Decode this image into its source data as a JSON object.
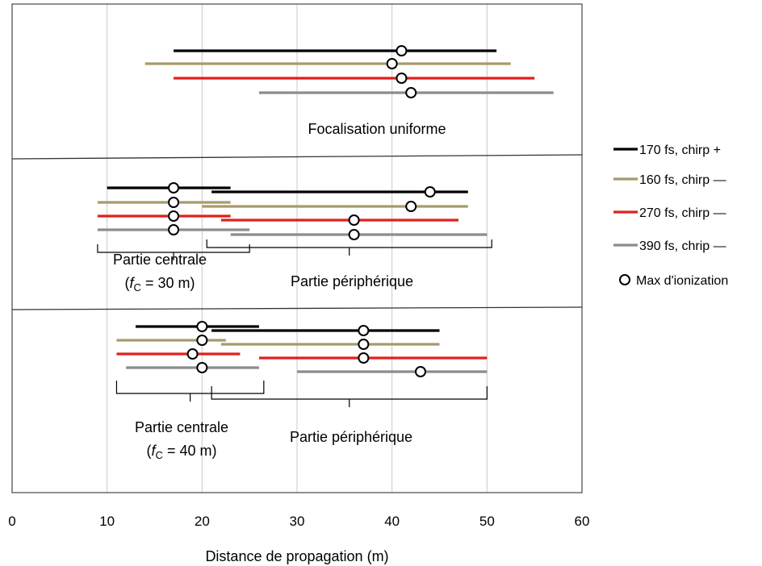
{
  "chart_data": {
    "type": "range",
    "xlabel": "Distance de propagation (m)",
    "xlim": [
      0,
      60
    ],
    "xticks": [
      0,
      10,
      20,
      30,
      40,
      50,
      60
    ],
    "grid": "vertical",
    "legend_position": "right",
    "legend": [
      {
        "label": "170 fs, chirp +",
        "color": "#000000",
        "marker": "line"
      },
      {
        "label": "160 fs, chirp —",
        "color": "#A89A6A",
        "marker": "line"
      },
      {
        "label": "270 fs, chirp —",
        "color": "#E0201B",
        "marker": "line"
      },
      {
        "label": "390 fs, chrip —",
        "color": "#8C8C8C",
        "marker": "line"
      },
      {
        "label": "Max d'ionization",
        "color": "#000000",
        "marker": "open-circle"
      }
    ],
    "panels": [
      {
        "label": "Focalisation uniforme",
        "segments": [
          {
            "series": "170 fs, chirp +",
            "start": 17,
            "end": 51,
            "max": 41
          },
          {
            "series": "160 fs, chirp —",
            "start": 14,
            "end": 52.5,
            "max": 40
          },
          {
            "series": "270 fs, chirp —",
            "start": 17,
            "end": 55,
            "max": 41
          },
          {
            "series": "390 fs, chrip —",
            "start": 26,
            "end": 57,
            "max": 42
          }
        ]
      },
      {
        "group_labels": [
          {
            "line1": "Partie centrale",
            "line2_italic": "f",
            "line2_sub": "C",
            "line2_rest": " = 30 m",
            "range": [
              9,
              25
            ]
          },
          {
            "line1": "Partie périphérique",
            "range": [
              20.5,
              50.5
            ]
          }
        ],
        "central": [
          {
            "series": "170 fs, chirp +",
            "start": 10,
            "end": 23,
            "max": 17
          },
          {
            "series": "160 fs, chirp —",
            "start": 9,
            "end": 23,
            "max": 17
          },
          {
            "series": "270 fs, chirp —",
            "start": 9,
            "end": 23,
            "max": 17
          },
          {
            "series": "390 fs, chrip —",
            "start": 9,
            "end": 25,
            "max": 17
          }
        ],
        "peripheral": [
          {
            "series": "170 fs, chirp +",
            "start": 21,
            "end": 48,
            "max": 44
          },
          {
            "series": "160 fs, chirp —",
            "start": 20,
            "end": 48,
            "max": 42
          },
          {
            "series": "270 fs, chirp —",
            "start": 22,
            "end": 47,
            "max": 36
          },
          {
            "series": "390 fs, chrip —",
            "start": 23,
            "end": 50,
            "max": 36
          }
        ]
      },
      {
        "group_labels": [
          {
            "line1": "Partie centrale",
            "line2_italic": "f",
            "line2_sub": "C",
            "line2_rest": " = 40 m",
            "range": [
              11,
              26.5
            ]
          },
          {
            "line1": "Partie périphérique",
            "range": [
              21,
              50
            ]
          }
        ],
        "central": [
          {
            "series": "170 fs, chirp +",
            "start": 13,
            "end": 26,
            "max": 20
          },
          {
            "series": "160 fs, chirp —",
            "start": 11,
            "end": 22.5,
            "max": 20
          },
          {
            "series": "270 fs, chirp —",
            "start": 11,
            "end": 24,
            "max": 19
          },
          {
            "series": "390 fs, chrip —",
            "start": 12,
            "end": 26,
            "max": 20
          }
        ],
        "peripheral": [
          {
            "series": "170 fs, chirp +",
            "start": 21,
            "end": 45,
            "max": 37
          },
          {
            "series": "160 fs, chirp —",
            "start": 22,
            "end": 45,
            "max": 37
          },
          {
            "series": "270 fs, chirp —",
            "start": 26,
            "end": 50,
            "max": 37
          },
          {
            "series": "390 fs, chrip —",
            "start": 30,
            "end": 50,
            "max": 43
          }
        ]
      }
    ]
  }
}
